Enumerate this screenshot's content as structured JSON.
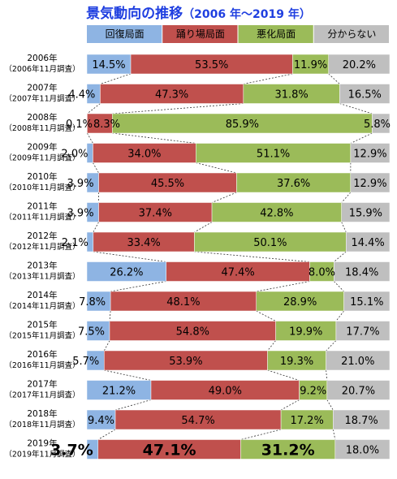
{
  "chart_data": {
    "type": "bar",
    "orientation": "horizontal-stacked-100",
    "title": "景気動向の推移",
    "subtitle": "（2006 年～2019 年）",
    "series": [
      {
        "name": "回復局面",
        "color": "#8eb4e3",
        "values": [
          14.5,
          4.4,
          0.1,
          2.0,
          3.9,
          3.9,
          2.1,
          26.2,
          7.8,
          7.5,
          5.7,
          21.2,
          9.4,
          3.7
        ]
      },
      {
        "name": "踊り場局面",
        "color": "#c0504d",
        "values": [
          53.5,
          47.3,
          8.3,
          34.0,
          45.5,
          37.4,
          33.4,
          47.4,
          48.1,
          54.8,
          53.9,
          49.0,
          54.7,
          47.1
        ]
      },
      {
        "name": "悪化局面",
        "color": "#9bbb59",
        "values": [
          11.9,
          31.8,
          85.9,
          51.1,
          37.6,
          42.8,
          50.1,
          8.0,
          28.9,
          19.9,
          19.3,
          9.2,
          17.2,
          31.2
        ]
      },
      {
        "name": "分からない",
        "color": "#bfbfbf",
        "values": [
          20.2,
          16.5,
          5.8,
          12.9,
          12.9,
          15.9,
          14.4,
          18.4,
          15.1,
          17.7,
          21.0,
          20.7,
          18.7,
          18.0
        ]
      }
    ],
    "labels": [
      [
        "14.5%",
        "53.5%",
        "11.9%",
        "20.2%"
      ],
      [
        "4.4%",
        "47.3%",
        "31.8%",
        "16.5%"
      ],
      [
        "0.1%",
        "8.3%",
        "85.9%",
        "5.8%"
      ],
      [
        "2.0%",
        "34.0%",
        "51.1%",
        "12.9%"
      ],
      [
        "3.9%",
        "45.5%",
        "37.6%",
        "12.9%"
      ],
      [
        "3.9%",
        "37.4%",
        "42.8%",
        "15.9%"
      ],
      [
        "2.1%",
        "33.4%",
        "50.1%",
        "14.4%"
      ],
      [
        "26.2%",
        "47.4%",
        "8.0%",
        "18.4%"
      ],
      [
        "7.8%",
        "48.1%",
        "28.9%",
        "15.1%"
      ],
      [
        "7.5%",
        "54.8%",
        "19.9%",
        "17.7%"
      ],
      [
        "5.7%",
        "53.9%",
        "19.3%",
        "21.0%"
      ],
      [
        "21.2%",
        "49.0%",
        "9.2%",
        "20.7%"
      ],
      [
        "9.4%",
        "54.7%",
        "17.2%",
        "18.7%"
      ],
      [
        "3.7%",
        "47.1%",
        "31.2%",
        "18.0%"
      ]
    ],
    "categories": [
      {
        "year": "2006年",
        "survey": "（2006年11月調査）"
      },
      {
        "year": "2007年",
        "survey": "（2007年11月調査）"
      },
      {
        "year": "2008年",
        "survey": "（2008年11月調査）"
      },
      {
        "year": "2009年",
        "survey": "（2009年11月調査）"
      },
      {
        "year": "2010年",
        "survey": "（2010年11月調査）"
      },
      {
        "year": "2011年",
        "survey": "（2011年11月調査）"
      },
      {
        "year": "2012年",
        "survey": "（2012年11月調査）"
      },
      {
        "year": "2013年",
        "survey": "（2013年11月調査）"
      },
      {
        "year": "2014年",
        "survey": "（2014年11月調査）"
      },
      {
        "year": "2015年",
        "survey": "（2015年11月調査）"
      },
      {
        "year": "2016年",
        "survey": "（2016年11月調査）"
      },
      {
        "year": "2017年",
        "survey": "（2017年11月調査）"
      },
      {
        "year": "2018年",
        "survey": "（2018年11月調査）"
      },
      {
        "year": "2019年",
        "survey": "（2019年11月調査）"
      }
    ],
    "xlim": [
      0,
      100
    ],
    "legend_position": "top",
    "connector_lines": "dashed",
    "emphasized_row": "2019年"
  }
}
